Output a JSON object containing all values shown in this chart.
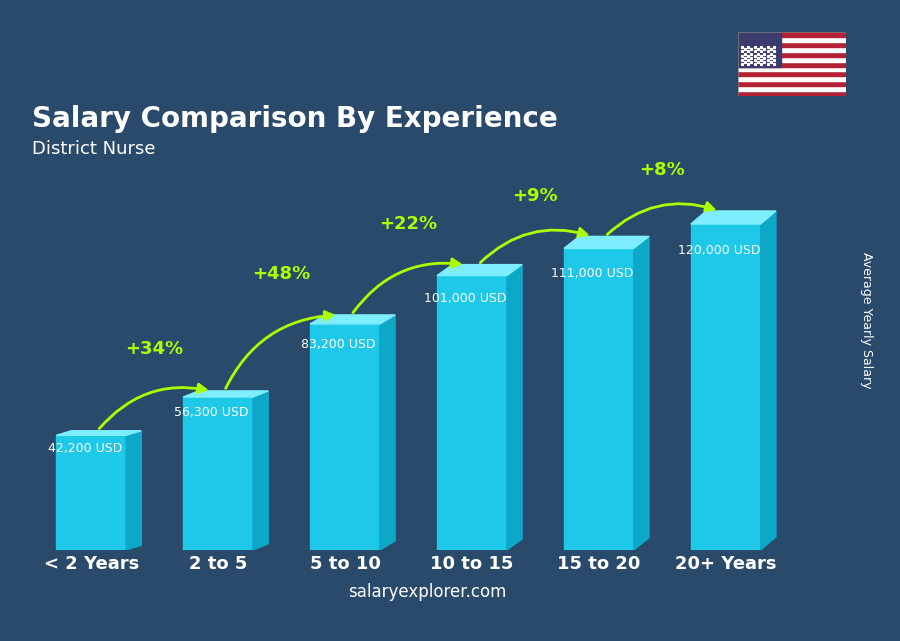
{
  "title": "Salary Comparison By Experience",
  "subtitle": "District Nurse",
  "categories": [
    "< 2 Years",
    "2 to 5",
    "5 to 10",
    "10 to 15",
    "15 to 20",
    "20+ Years"
  ],
  "values": [
    42200,
    56300,
    83200,
    101000,
    111000,
    120000
  ],
  "labels": [
    "42,200 USD",
    "56,300 USD",
    "83,200 USD",
    "101,000 USD",
    "111,000 USD",
    "120,000 USD"
  ],
  "pct_changes": [
    "+34%",
    "+48%",
    "+22%",
    "+9%",
    "+8%"
  ],
  "bar_color_top": "#00CFFF",
  "bar_color_bottom": "#0099CC",
  "bar_color_left": "#33DDFF",
  "background_color": "#2a4a6b",
  "title_color": "#FFFFFF",
  "subtitle_color": "#FFFFFF",
  "label_color": "#FFFFFF",
  "pct_color": "#AAFF00",
  "arrow_color": "#AAFF00",
  "ylabel": "Average Yearly Salary",
  "watermark": "salaryexplorer.com",
  "ylim": [
    0,
    145000
  ],
  "bar_width": 0.55
}
